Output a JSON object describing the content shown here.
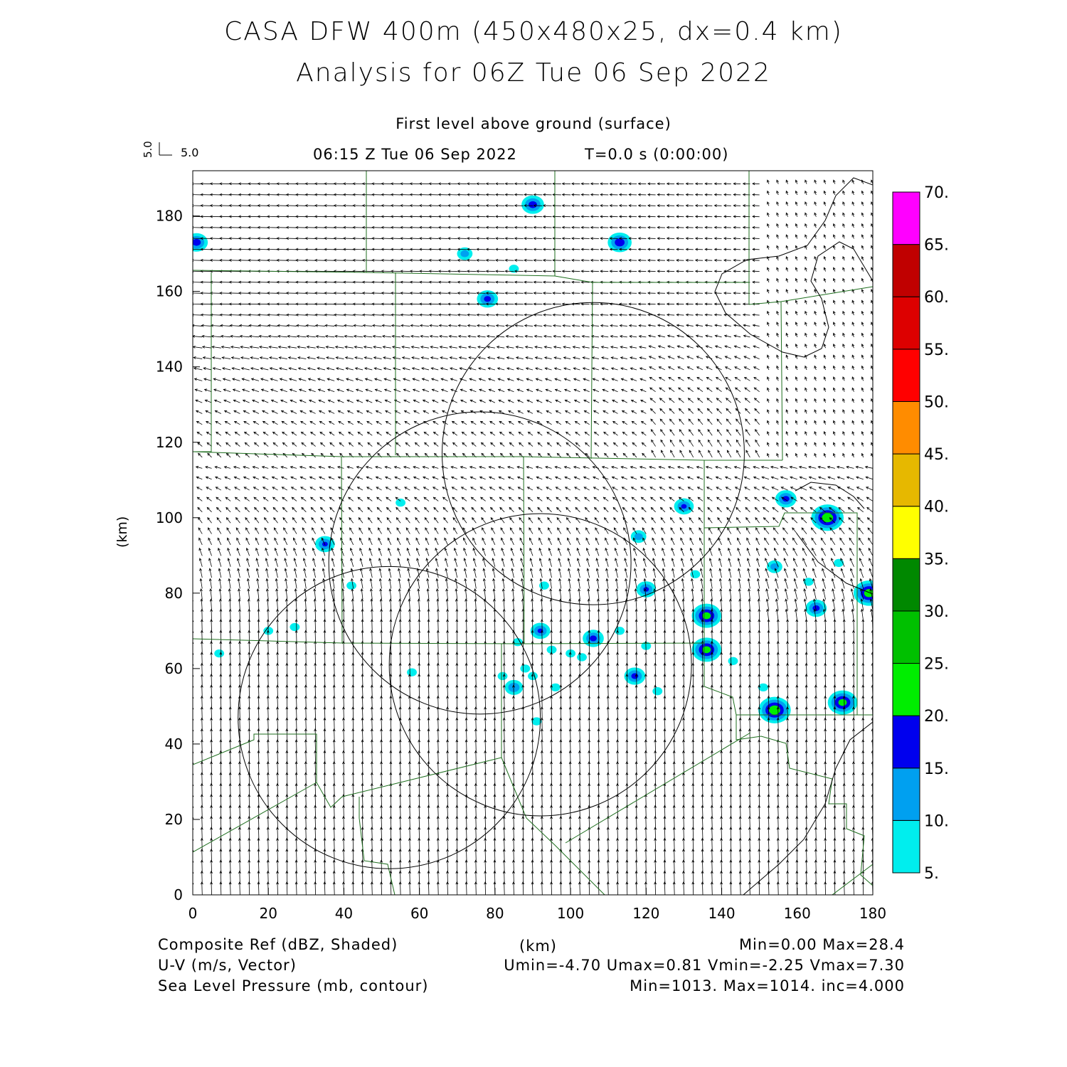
{
  "title": "CASA DFW 400m (450x480x25, dx=0.4 km)",
  "subtitle": "Analysis for 06Z Tue 06 Sep 2022",
  "level_label": "First level above ground (surface)",
  "valid_time": "06:15 Z Tue 06 Sep 2022",
  "forecast_time": "T=0.0 s (0:00:00)",
  "vector_scale": {
    "vertical_label": "5.0",
    "horizontal_label": "5.0"
  },
  "x_axis": {
    "label": "(km)",
    "ticks": [
      "0",
      "20",
      "40",
      "60",
      "80",
      "100",
      "120",
      "140",
      "160",
      "180"
    ],
    "range": [
      0,
      180
    ]
  },
  "y_axis": {
    "label": "(km)",
    "ticks": [
      "0",
      "20",
      "40",
      "60",
      "80",
      "100",
      "120",
      "140",
      "160",
      "180"
    ],
    "range": [
      0,
      192
    ]
  },
  "colorbar": {
    "labels": [
      "5.",
      "10.",
      "15.",
      "20.",
      "25.",
      "30.",
      "35.",
      "40.",
      "45.",
      "50.",
      "55.",
      "60.",
      "65.",
      "70."
    ],
    "colors": [
      "#00eeee",
      "#00a0f0",
      "#0000ee",
      "#00ee00",
      "#00c000",
      "#008800",
      "#ffff00",
      "#e6b800",
      "#ff8c00",
      "#ff0000",
      "#dd0000",
      "#c00000",
      "#ff00ff"
    ]
  },
  "footer": {
    "left": [
      "Composite Ref (dBZ, Shaded)",
      "U-V (m/s, Vector)",
      "Sea Level Pressure (mb, contour)"
    ],
    "center": "(km)",
    "right": [
      "Min=0.00 Max=28.4",
      "Umin=-4.70 Umax=0.81 Vmin=-2.25 Vmax=7.30",
      "Min=1013. Max=1014. inc=4.000"
    ]
  },
  "colors": {
    "county_lines": "#1e6e1e",
    "range_rings": "#000000",
    "vectors": "#000000"
  },
  "radar_range_rings": [
    {
      "center_km": [
        106,
        117
      ],
      "radius_km": 40
    },
    {
      "center_km": [
        76,
        88
      ],
      "radius_km": 40
    },
    {
      "center_km": [
        92,
        61
      ],
      "radius_km": 40
    },
    {
      "center_km": [
        52,
        47
      ],
      "radius_km": 40
    }
  ],
  "reflectivity_cells": [
    {
      "x": 1,
      "y": 173,
      "dbz": 17
    },
    {
      "x": 90,
      "y": 183,
      "dbz": 17
    },
    {
      "x": 72,
      "y": 170,
      "dbz": 12
    },
    {
      "x": 113,
      "y": 173,
      "dbz": 18
    },
    {
      "x": 78,
      "y": 158,
      "dbz": 16
    },
    {
      "x": 85,
      "y": 166,
      "dbz": 8
    },
    {
      "x": 130,
      "y": 103,
      "dbz": 15
    },
    {
      "x": 118,
      "y": 95,
      "dbz": 12
    },
    {
      "x": 35,
      "y": 93,
      "dbz": 15
    },
    {
      "x": 168,
      "y": 100,
      "dbz": 24
    },
    {
      "x": 157,
      "y": 105,
      "dbz": 16
    },
    {
      "x": 154,
      "y": 87,
      "dbz": 12
    },
    {
      "x": 165,
      "y": 76,
      "dbz": 16
    },
    {
      "x": 179,
      "y": 80,
      "dbz": 23
    },
    {
      "x": 136,
      "y": 74,
      "dbz": 22
    },
    {
      "x": 136,
      "y": 65,
      "dbz": 22
    },
    {
      "x": 154,
      "y": 49,
      "dbz": 24
    },
    {
      "x": 172,
      "y": 51,
      "dbz": 22
    },
    {
      "x": 106,
      "y": 68,
      "dbz": 16
    },
    {
      "x": 117,
      "y": 58,
      "dbz": 16
    },
    {
      "x": 120,
      "y": 81,
      "dbz": 15
    },
    {
      "x": 92,
      "y": 70,
      "dbz": 15
    },
    {
      "x": 85,
      "y": 55,
      "dbz": 14
    },
    {
      "x": 88,
      "y": 60,
      "dbz": 8
    },
    {
      "x": 95,
      "y": 65,
      "dbz": 8
    },
    {
      "x": 100,
      "y": 64,
      "dbz": 8
    },
    {
      "x": 82,
      "y": 58,
      "dbz": 8
    },
    {
      "x": 90,
      "y": 58,
      "dbz": 8
    },
    {
      "x": 96,
      "y": 55,
      "dbz": 8
    },
    {
      "x": 103,
      "y": 63,
      "dbz": 8
    },
    {
      "x": 86,
      "y": 67,
      "dbz": 8
    },
    {
      "x": 123,
      "y": 54,
      "dbz": 8
    },
    {
      "x": 143,
      "y": 62,
      "dbz": 8
    },
    {
      "x": 7,
      "y": 64,
      "dbz": 8
    },
    {
      "x": 27,
      "y": 71,
      "dbz": 8
    },
    {
      "x": 42,
      "y": 82,
      "dbz": 8
    },
    {
      "x": 58,
      "y": 59,
      "dbz": 8
    },
    {
      "x": 163,
      "y": 83,
      "dbz": 8
    },
    {
      "x": 171,
      "y": 88,
      "dbz": 8
    },
    {
      "x": 133,
      "y": 85,
      "dbz": 8
    },
    {
      "x": 151,
      "y": 55,
      "dbz": 8
    },
    {
      "x": 120,
      "y": 66,
      "dbz": 8
    },
    {
      "x": 113,
      "y": 70,
      "dbz": 8
    },
    {
      "x": 93,
      "y": 82,
      "dbz": 8
    },
    {
      "x": 20,
      "y": 70,
      "dbz": 8
    },
    {
      "x": 55,
      "y": 104,
      "dbz": 8
    },
    {
      "x": 91,
      "y": 46,
      "dbz": 8
    }
  ]
}
